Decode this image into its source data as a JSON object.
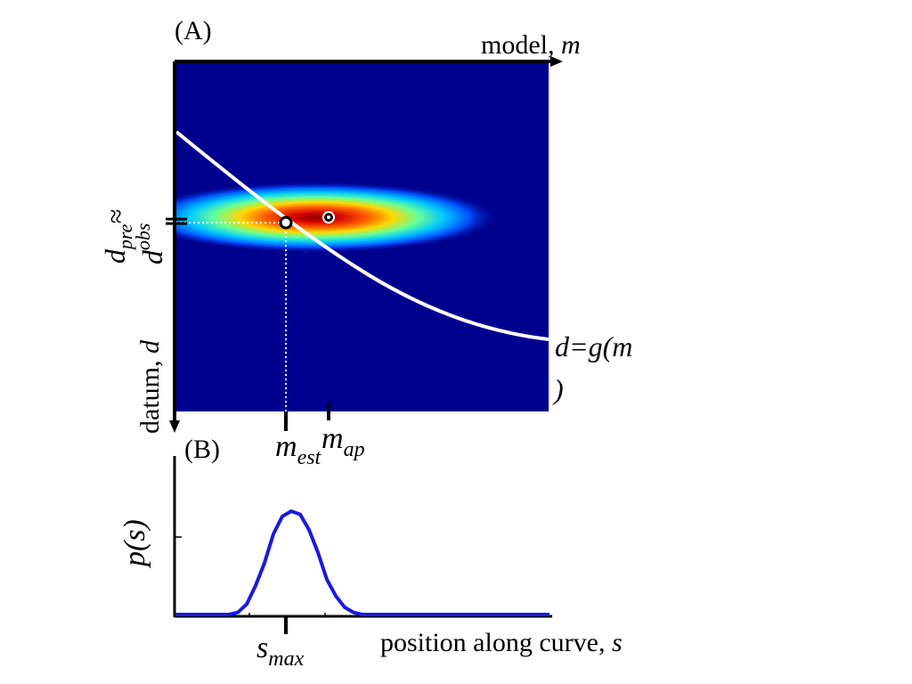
{
  "panel_a": {
    "label": "(A)",
    "x_axis_label": "model,",
    "x_axis_var": "m",
    "y_axis_label": "datum,",
    "y_axis_var": "d",
    "curve_label_main": "d=g(m",
    "curve_label_close": ")",
    "d_pre": {
      "base": "d",
      "sub": "pre"
    },
    "approx": "≈",
    "d_obs": {
      "base": "d",
      "sup": "obs"
    },
    "m_est": {
      "base": "m",
      "sub": "est"
    },
    "m_ap": {
      "base": "m",
      "sub": "ap"
    }
  },
  "panel_b": {
    "label": "(B)",
    "y_axis_label": "p(s)",
    "x_axis_label": "position along curve,",
    "x_axis_var": "s",
    "s_max": {
      "base": "s",
      "sub": "max"
    }
  },
  "colors": {
    "field_background": "#00008f",
    "curve": "#ffffff",
    "pdf_line": "#1a1adc",
    "axes": "#000000"
  },
  "chart_data": {
    "type": "line",
    "xlabel": "position along curve, s",
    "ylabel": "p(s)",
    "x": [
      0,
      10,
      20,
      30,
      40,
      50,
      60,
      70,
      80,
      90,
      100,
      110,
      120,
      130,
      140,
      150,
      160,
      170,
      180,
      190,
      200,
      210,
      220,
      230,
      240,
      250,
      260,
      270,
      280,
      290,
      300,
      310,
      320,
      330,
      340,
      350,
      360,
      370,
      380,
      390,
      400,
      410,
      420
    ],
    "series": [
      {
        "values": [
          0.0,
          0.0,
          0.0,
          0.0,
          0.0,
          0.0,
          0.0,
          0.02,
          0.1,
          0.28,
          0.5,
          0.78,
          0.95,
          1.0,
          0.97,
          0.82,
          0.6,
          0.34,
          0.18,
          0.07,
          0.02,
          0.0,
          0.0,
          0.0,
          0.0,
          0.0,
          0.0,
          0.0,
          0.0,
          0.0,
          0.0,
          0.0,
          0.0,
          0.0,
          0.0,
          0.0,
          0.0,
          0.0,
          0.0,
          0.0,
          0.0,
          0.0,
          0.0
        ]
      }
    ]
  }
}
